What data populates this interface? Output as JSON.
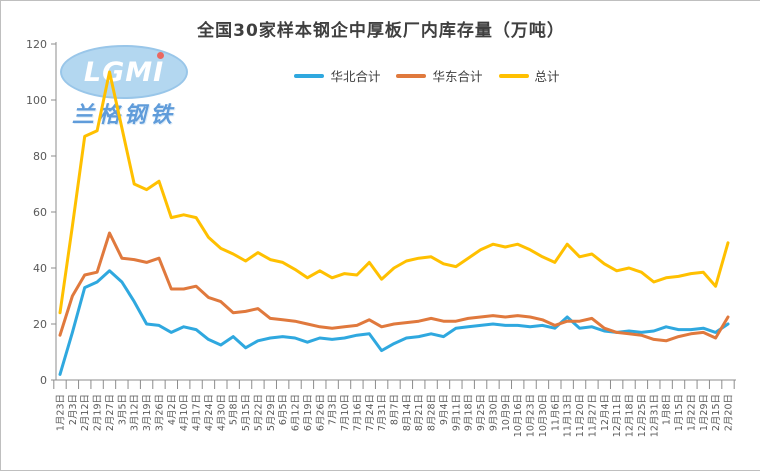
{
  "window": {
    "bg": "#ffffff",
    "border_color": "#bfbfbf"
  },
  "logo": {
    "acronym": "LGMI",
    "company": "兰格钢铁"
  },
  "chart_data": {
    "type": "line",
    "title": "全国30家样本钢企中厚板厂内库存量（万吨）",
    "xlabel": "",
    "ylabel": "",
    "ylim": [
      0,
      120
    ],
    "y_ticks": [
      0,
      20,
      40,
      60,
      80,
      100,
      120
    ],
    "grid": false,
    "legend_position": "top",
    "axis_color": "#8c8c8c",
    "tick_label_color": "#595959",
    "x_labels": [
      "1月23日",
      "2月3日",
      "2月12日",
      "2月19日",
      "2月27日",
      "3月5日",
      "3月12日",
      "3月19日",
      "3月26日",
      "4月2日",
      "4月10日",
      "4月17日",
      "4月24日",
      "4月30日",
      "5月8日",
      "5月15日",
      "5月22日",
      "5月29日",
      "6月5日",
      "6月12日",
      "6月19日",
      "6月26日",
      "7月3日",
      "7月10日",
      "7月16日",
      "7月24日",
      "7月31日",
      "8月7日",
      "8月14日",
      "8月21日",
      "8月28日",
      "9月4日",
      "9月11日",
      "9月18日",
      "9月25日",
      "9月30日",
      "10月9日",
      "10月16日",
      "10月23日",
      "10月30日",
      "11月6日",
      "11月13日",
      "11月20日",
      "11月27日",
      "12月4日",
      "12月11日",
      "12月18日",
      "12月25日",
      "12月31日",
      "1月8日",
      "1月15日",
      "1月22日",
      "1月29日",
      "2月15日",
      "2月20日"
    ],
    "series": [
      {
        "name": "华北合计",
        "color": "#2FA8DF",
        "values": [
          2,
          17,
          33,
          35,
          39,
          35,
          28,
          20,
          19.5,
          17,
          19,
          18,
          14.5,
          12.5,
          15.5,
          11.5,
          14,
          15,
          15.5,
          15,
          13.5,
          15,
          14.5,
          15,
          16,
          16.5,
          10.5,
          13,
          15,
          15.5,
          16.5,
          15.5,
          18.5,
          19,
          19.5,
          20,
          19.5,
          19.5,
          19,
          19.5,
          18.5,
          22.5,
          18.5,
          19,
          17.5,
          17,
          17.5,
          17,
          17.5,
          19,
          18,
          18,
          18.5,
          17,
          20
        ]
      },
      {
        "name": "华东合计",
        "color": "#E0793D",
        "values": [
          16,
          30,
          37.5,
          38.5,
          52.5,
          43.5,
          43,
          42,
          43.5,
          32.5,
          32.5,
          33.5,
          29.5,
          28,
          24,
          24.5,
          25.5,
          22,
          21.5,
          21,
          20,
          19,
          18.5,
          19,
          19.5,
          21.5,
          19,
          20,
          20.5,
          21,
          22,
          21,
          21,
          22,
          22.5,
          23,
          22.5,
          23,
          22.5,
          21.5,
          19.5,
          21,
          21,
          22,
          18.5,
          17,
          16.5,
          16,
          14.5,
          14,
          15.5,
          16.5,
          17,
          15,
          22.5
        ]
      },
      {
        "name": "总计",
        "color": "#FFC000",
        "values": [
          24,
          55,
          87,
          89,
          110,
          90,
          70,
          68,
          71,
          58,
          59,
          58,
          51,
          47,
          45,
          42.5,
          45.5,
          43,
          42,
          39.5,
          36.5,
          39,
          36.5,
          38,
          37.5,
          42,
          36,
          40,
          42.5,
          43.5,
          44,
          41.5,
          40.5,
          43.5,
          46.5,
          48.5,
          47.5,
          48.5,
          46.5,
          44,
          42,
          48.5,
          44,
          45,
          41.5,
          39,
          40,
          38.5,
          35,
          36.5,
          37,
          38,
          38.5,
          33.5,
          49
        ]
      }
    ]
  }
}
